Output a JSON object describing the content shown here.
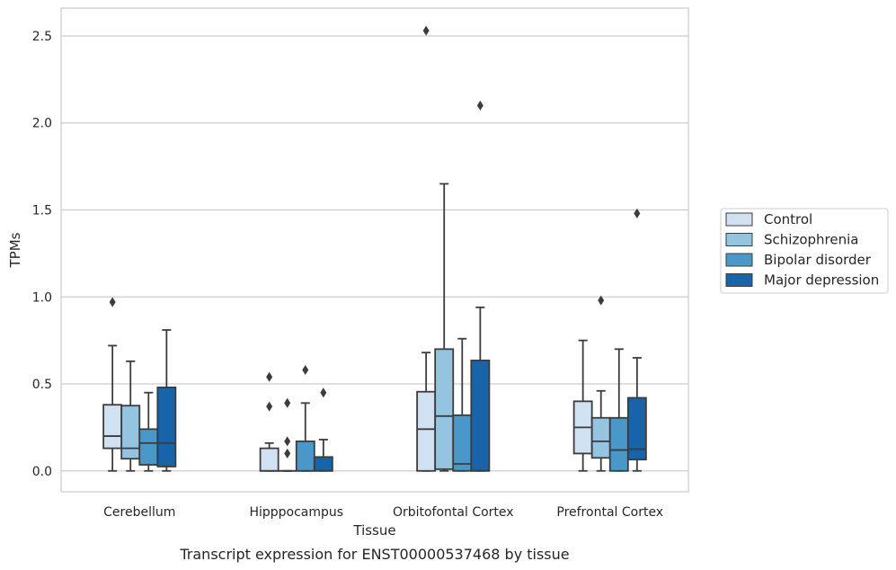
{
  "chart_data": {
    "type": "box",
    "xlabel": "Tissue",
    "ylabel": "TPMs",
    "caption": "Transcript expression for ENST00000537468 by tissue",
    "ylim": [
      -0.12,
      2.66
    ],
    "yticks": [
      0.0,
      0.5,
      1.0,
      1.5,
      2.0,
      2.5
    ],
    "ytick_labels": [
      "0.0",
      "0.5",
      "1.0",
      "1.5",
      "2.0",
      "2.5"
    ],
    "grid": "horizontal",
    "legend_position": "right",
    "categories": [
      "Cerebellum",
      "Hipppocampus",
      "Orbitofontal Cortex",
      "Prefrontal Cortex"
    ],
    "series": [
      {
        "name": "Control",
        "color": "#d0e1f2",
        "boxes": [
          {
            "whislo": 0.0,
            "q1": 0.13,
            "med": 0.2,
            "q3": 0.38,
            "whishi": 0.72,
            "fliers": [
              0.97
            ]
          },
          {
            "whislo": 0.0,
            "q1": 0.0,
            "med": 0.0,
            "q3": 0.13,
            "whishi": 0.16,
            "fliers": [
              0.37,
              0.54
            ]
          },
          {
            "whislo": 0.0,
            "q1": 0.0,
            "med": 0.24,
            "q3": 0.455,
            "whishi": 0.68,
            "fliers": [
              2.53
            ]
          },
          {
            "whislo": 0.0,
            "q1": 0.1,
            "med": 0.25,
            "q3": 0.4,
            "whishi": 0.75,
            "fliers": []
          }
        ]
      },
      {
        "name": "Schizophrenia",
        "color": "#94c4df",
        "boxes": [
          {
            "whislo": 0.0,
            "q1": 0.07,
            "med": 0.13,
            "q3": 0.375,
            "whishi": 0.63,
            "fliers": []
          },
          {
            "whislo": 0.0,
            "q1": 0.0,
            "med": 0.0,
            "q3": 0.0,
            "whishi": 0.0,
            "fliers": [
              0.1,
              0.17,
              0.39
            ]
          },
          {
            "whislo": 0.0,
            "q1": 0.01,
            "med": 0.315,
            "q3": 0.7,
            "whishi": 1.65,
            "fliers": []
          },
          {
            "whislo": 0.0,
            "q1": 0.075,
            "med": 0.17,
            "q3": 0.305,
            "whishi": 0.46,
            "fliers": [
              0.98
            ]
          }
        ]
      },
      {
        "name": "Bipolar disorder",
        "color": "#4a98c9",
        "boxes": [
          {
            "whislo": 0.0,
            "q1": 0.035,
            "med": 0.16,
            "q3": 0.24,
            "whishi": 0.45,
            "fliers": []
          },
          {
            "whislo": 0.0,
            "q1": 0.0,
            "med": 0.0,
            "q3": 0.17,
            "whishi": 0.39,
            "fliers": [
              0.58
            ]
          },
          {
            "whislo": 0.0,
            "q1": 0.0,
            "med": 0.04,
            "q3": 0.32,
            "whishi": 0.76,
            "fliers": []
          },
          {
            "whislo": 0.0,
            "q1": 0.0,
            "med": 0.12,
            "q3": 0.305,
            "whishi": 0.7,
            "fliers": []
          }
        ]
      },
      {
        "name": "Major depression",
        "color": "#1764ab",
        "boxes": [
          {
            "whislo": 0.0,
            "q1": 0.025,
            "med": 0.16,
            "q3": 0.48,
            "whishi": 0.81,
            "fliers": []
          },
          {
            "whislo": 0.0,
            "q1": 0.0,
            "med": 0.0,
            "q3": 0.08,
            "whishi": 0.18,
            "fliers": [
              0.45
            ]
          },
          {
            "whislo": 0.0,
            "q1": 0.0,
            "med": 0.0,
            "q3": 0.635,
            "whishi": 0.94,
            "fliers": [
              2.1
            ]
          },
          {
            "whislo": 0.0,
            "q1": 0.065,
            "med": 0.125,
            "q3": 0.42,
            "whishi": 0.65,
            "fliers": [
              1.48
            ]
          }
        ]
      }
    ]
  }
}
